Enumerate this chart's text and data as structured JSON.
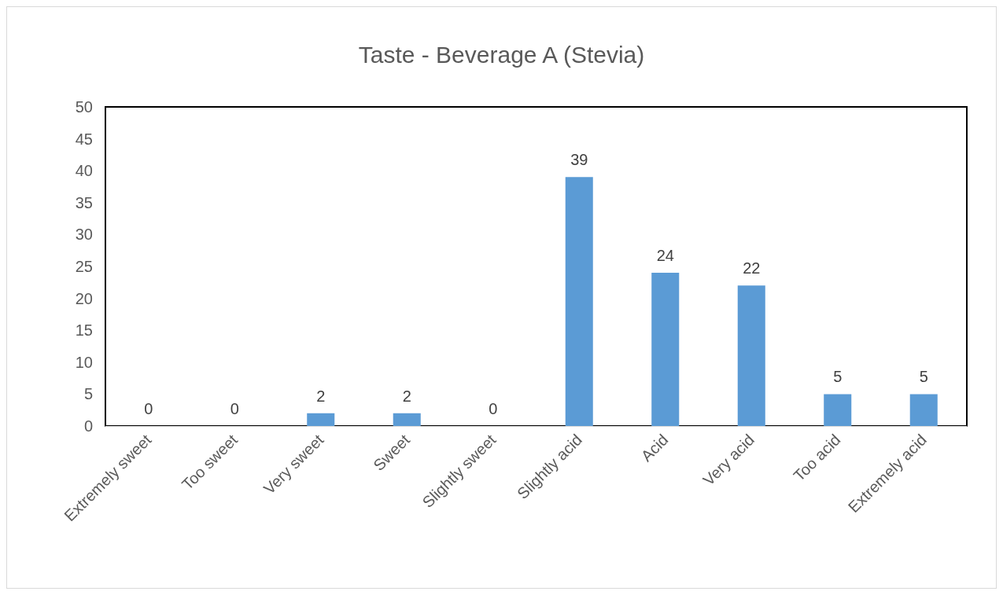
{
  "chart_data": {
    "type": "bar",
    "title": "Taste - Beverage A (Stevia)",
    "categories": [
      "Extremely sweet",
      "Too sweet",
      "Very sweet",
      "Sweet",
      "Slightly sweet",
      "Slightly acid",
      "Acid",
      "Very acid",
      "Too acid",
      "Extremely acid"
    ],
    "values": [
      0,
      0,
      2,
      2,
      0,
      39,
      24,
      22,
      5,
      5
    ],
    "color": "#5b9bd5",
    "ylim": [
      0,
      50
    ],
    "yticks": [
      0,
      5,
      10,
      15,
      20,
      25,
      30,
      35,
      40,
      45,
      50
    ],
    "grid": false,
    "data_labels": true
  }
}
